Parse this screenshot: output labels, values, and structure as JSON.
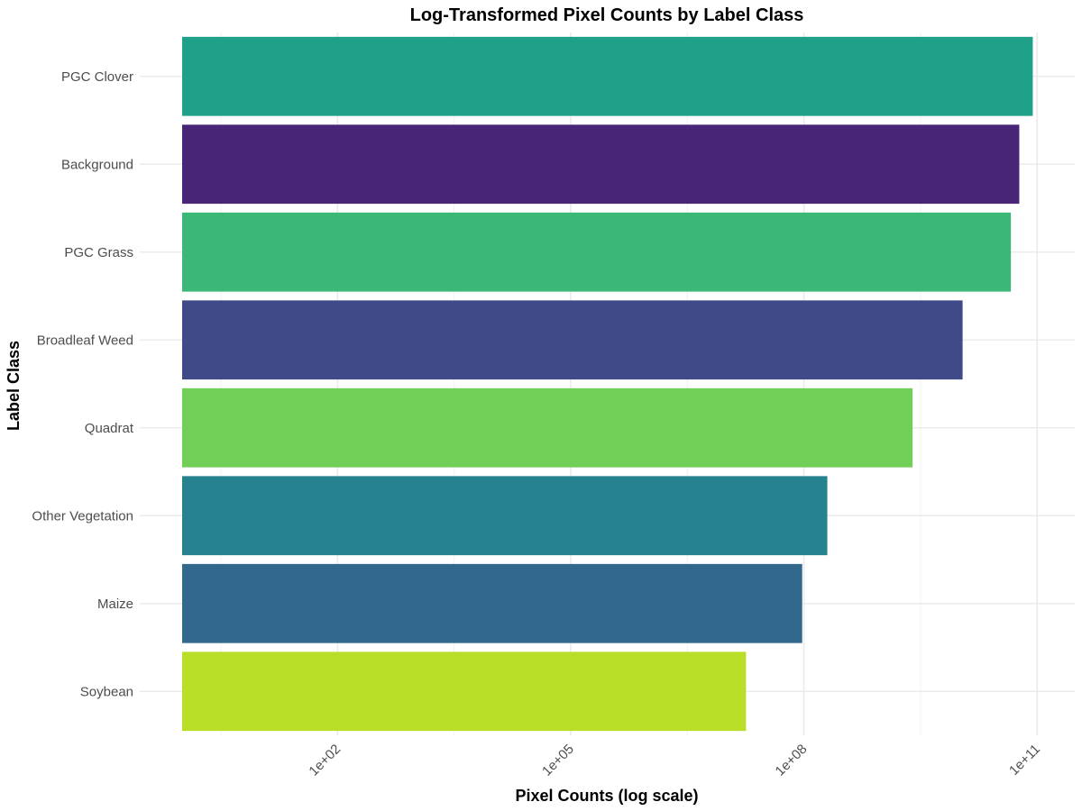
{
  "chart_data": {
    "type": "bar",
    "orientation": "horizontal",
    "title": "Log-Transformed Pixel Counts by Label Class",
    "xlabel": "Pixel Counts (log scale)",
    "ylabel": "Label Class",
    "x_scale": "log10",
    "xlim": [
      1,
      300000000000
    ],
    "x_ticks": [
      100,
      100000,
      100000000,
      100000000000
    ],
    "x_tick_labels": [
      "1e+02",
      "1e+05",
      "1e+08",
      "1e+11"
    ],
    "grid": true,
    "legend": "none",
    "categories": [
      "PGC Clover",
      "Background",
      "PGC Grass",
      "Broadleaf Weed",
      "Quadrat",
      "Other Vegetation",
      "Maize",
      "Soybean"
    ],
    "values": [
      88000000000,
      59000000000,
      46000000000,
      11000000000,
      2500000000,
      200000000,
      95000000,
      18000000
    ],
    "colors": [
      "#1FA088",
      "#482576",
      "#3BB877",
      "#404A88",
      "#71CE56",
      "#26828E",
      "#33688D",
      "#B9DE28"
    ]
  }
}
